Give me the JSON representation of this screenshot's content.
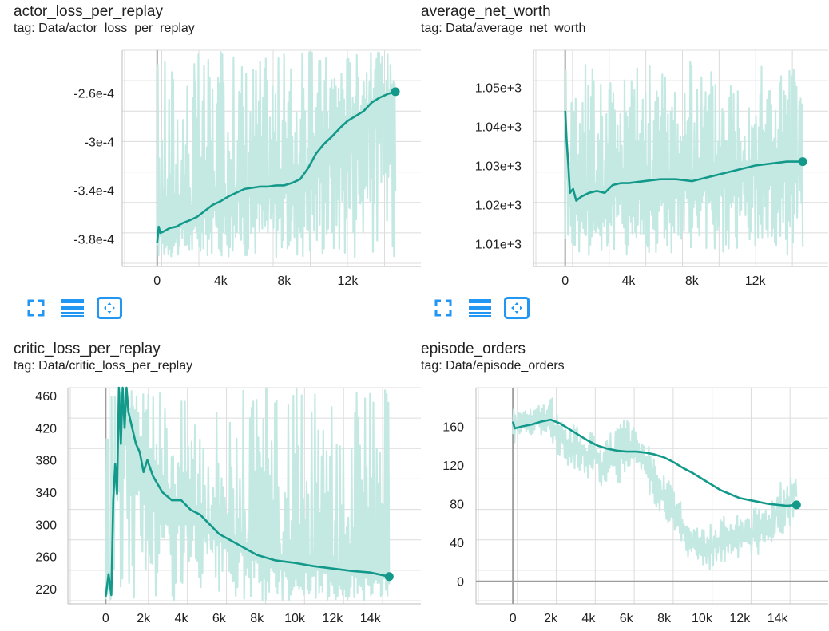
{
  "colors": {
    "line": "#13998a",
    "raw": "#c4e9e3",
    "grid": "#dcdcdc",
    "axis": "#9e9e9e",
    "icon": "#2196f3"
  },
  "toolbar_icons": [
    "fullscreen-icon",
    "data-table-icon",
    "fit-domain-icon"
  ],
  "chart_data": [
    {
      "type": "line",
      "title": "actor_loss_per_replay",
      "tag": "tag: Data/actor_loss_per_replay",
      "xlim": [
        -2200,
        15800
      ],
      "ylim": [
        -0.0004,
        -0.000225
      ],
      "xticks": [
        0,
        4000,
        8000,
        12000
      ],
      "xtick_labels": [
        "0",
        "4k",
        "8k",
        "12k"
      ],
      "yticks": [
        -0.00026,
        -0.0003,
        -0.00034,
        -0.00038
      ],
      "ytick_labels": [
        "-2.6e-4",
        "-3e-4",
        "-3.4e-4",
        "-3.8e-4"
      ],
      "raw_band": [
        -0.000395,
        -0.000225
      ],
      "smoothed": {
        "x": [
          0,
          100,
          200,
          400,
          800,
          1200,
          1600,
          2000,
          2500,
          3000,
          3500,
          4000,
          4500,
          5000,
          5500,
          6000,
          6500,
          7000,
          7500,
          8000,
          8500,
          9000,
          9500,
          10000,
          10500,
          11000,
          11500,
          12000,
          12500,
          13000,
          13500,
          14000,
          14500,
          15000
        ],
        "y": [
          -0.000383,
          -0.00037,
          -0.000375,
          -0.000374,
          -0.000371,
          -0.00037,
          -0.000367,
          -0.000365,
          -0.000362,
          -0.000357,
          -0.000352,
          -0.000349,
          -0.000345,
          -0.000342,
          -0.000339,
          -0.000338,
          -0.000337,
          -0.000337,
          -0.000336,
          -0.000336,
          -0.000334,
          -0.000331,
          -0.000322,
          -0.00031,
          -0.000302,
          -0.000296,
          -0.000289,
          -0.000283,
          -0.000279,
          -0.000275,
          -0.000268,
          -0.000264,
          -0.000261,
          -0.000259
        ]
      }
    },
    {
      "type": "line",
      "title": "average_net_worth",
      "tag": "tag: Data/average_net_worth",
      "xlim": [
        -2000,
        15800
      ],
      "ylim": [
        1005,
        1059.5
      ],
      "xticks": [
        0,
        4000,
        8000,
        12000
      ],
      "xtick_labels": [
        "0",
        "4k",
        "8k",
        "12k"
      ],
      "yticks": [
        1010,
        1020,
        1030,
        1040,
        1050
      ],
      "ytick_labels": [
        "1.01e+3",
        "1.02e+3",
        "1.03e+3",
        "1.04e+3",
        "1.05e+3"
      ],
      "raw_band": [
        1007,
        1057
      ],
      "smoothed": {
        "x": [
          0,
          100,
          200,
          300,
          500,
          700,
          1000,
          1500,
          2000,
          2500,
          3000,
          3500,
          4000,
          5000,
          6000,
          7000,
          8000,
          9000,
          10000,
          11000,
          12000,
          13000,
          14000,
          15000
        ],
        "y": [
          1044,
          1036,
          1030,
          1023,
          1024,
          1021,
          1022,
          1023,
          1023.5,
          1023,
          1025,
          1025.5,
          1025.5,
          1026,
          1026.5,
          1026.5,
          1026,
          1027,
          1028,
          1029,
          1030,
          1030.5,
          1031,
          1031
        ]
      }
    },
    {
      "type": "line",
      "title": "critic_loss_per_replay",
      "tag": "tag: Data/critic_loss_per_replay",
      "xlim": [
        -2000,
        16000
      ],
      "ylim": [
        205,
        470
      ],
      "xticks": [
        0,
        2000,
        4000,
        6000,
        8000,
        10000,
        12000,
        14000
      ],
      "xtick_labels": [
        "0",
        "2k",
        "4k",
        "6k",
        "8k",
        "10k",
        "12k",
        "14k"
      ],
      "yticks": [
        220,
        260,
        300,
        340,
        380,
        420,
        460
      ],
      "ytick_labels": [
        "220",
        "260",
        "300",
        "340",
        "380",
        "420",
        "460"
      ],
      "raw_band": [
        205,
        470
      ],
      "smoothed": {
        "x": [
          0,
          150,
          300,
          400,
          500,
          600,
          700,
          800,
          900,
          1000,
          1100,
          1200,
          1400,
          1600,
          1800,
          2000,
          2200,
          2500,
          3000,
          3500,
          4000,
          4500,
          5000,
          5500,
          6000,
          7000,
          8000,
          9000,
          10000,
          11000,
          12000,
          13000,
          14000,
          15000
        ],
        "y": [
          210,
          238,
          212,
          330,
          375,
          338,
          470,
          400,
          470,
          420,
          470,
          440,
          420,
          400,
          390,
          365,
          380,
          360,
          340,
          330,
          330,
          318,
          312,
          300,
          288,
          275,
          262,
          255,
          252,
          248,
          245,
          242,
          240,
          235
        ]
      }
    },
    {
      "type": "line",
      "title": "episode_orders",
      "tag": "tag: Data/episode_orders",
      "xlim": [
        -1950,
        16000
      ],
      "ylim": [
        -20,
        200
      ],
      "xticks": [
        0,
        2000,
        4000,
        6000,
        8000,
        10000,
        12000,
        14000
      ],
      "xtick_labels": [
        "0",
        "2k",
        "4k",
        "6k",
        "8k",
        "10k",
        "12k",
        "14k"
      ],
      "yticks": [
        0,
        40,
        80,
        120,
        160
      ],
      "ytick_labels": [
        "0",
        "40",
        "80",
        "120",
        "160"
      ],
      "raw": {
        "x": [
          0,
          300,
          600,
          1000,
          1400,
          1800,
          2000,
          2400,
          2800,
          3200,
          3600,
          4000,
          4400,
          4800,
          5200,
          5600,
          6000,
          6400,
          6800,
          7200,
          7600,
          8000,
          8400,
          8800,
          9200,
          9600,
          10000,
          10400,
          10800,
          11200,
          11600,
          12000,
          12400,
          12800,
          13200,
          13600,
          14000,
          14400,
          14800,
          15000
        ],
        "low": [
          140,
          148,
          150,
          152,
          150,
          155,
          148,
          130,
          120,
          118,
          110,
          100,
          112,
          92,
          108,
          98,
          112,
          118,
          110,
          90,
          75,
          65,
          50,
          35,
          25,
          15,
          8,
          12,
          18,
          20,
          15,
          18,
          22,
          20,
          28,
          30,
          45,
          50,
          60,
          80
        ],
        "high": [
          185,
          178,
          182,
          178,
          185,
          180,
          195,
          170,
          165,
          162,
          160,
          158,
          150,
          142,
          155,
          162,
          170,
          160,
          150,
          140,
          128,
          110,
          100,
          85,
          72,
          62,
          60,
          58,
          65,
          70,
          72,
          70,
          80,
          78,
          82,
          90,
          100,
          108,
          115,
          120
        ]
      },
      "smoothed": {
        "x": [
          0,
          100,
          500,
          1000,
          1500,
          2000,
          2500,
          3000,
          3500,
          4000,
          4500,
          5000,
          5500,
          6000,
          6500,
          7000,
          7500,
          8000,
          8500,
          9000,
          9500,
          10000,
          10500,
          11000,
          11500,
          12000,
          12500,
          13000,
          13500,
          14000,
          14500,
          15000
        ],
        "y": [
          165,
          158,
          160,
          162,
          165,
          167,
          163,
          157,
          151,
          145,
          140,
          137,
          135,
          134,
          134,
          133,
          131,
          128,
          123,
          117,
          112,
          106,
          100,
          94,
          90,
          86,
          84,
          82,
          80,
          79,
          78,
          79
        ]
      }
    }
  ]
}
